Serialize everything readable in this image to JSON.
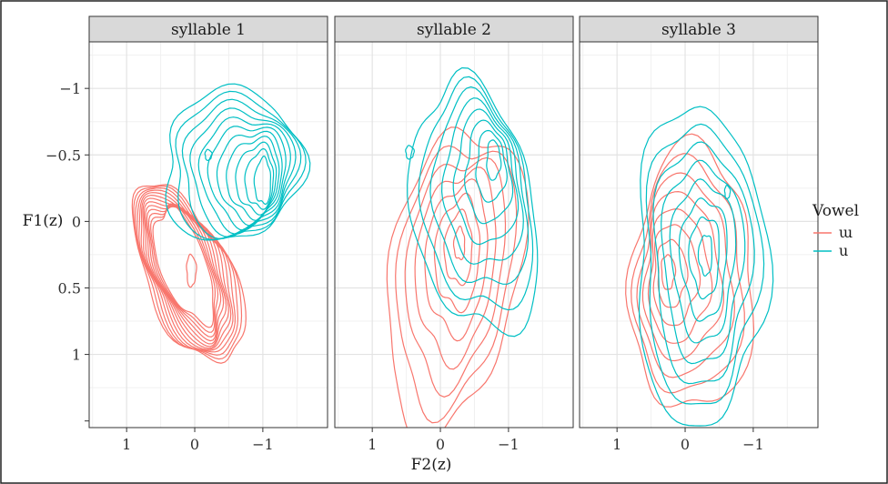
{
  "chart_data": {
    "type": "contour",
    "xlabel": "F2(z)",
    "ylabel": "F1(z)",
    "x_reversed": true,
    "y_reversed": true,
    "xlim": [
      1.55,
      -1.95
    ],
    "ylim": [
      -1.35,
      1.55
    ],
    "x_ticks": [
      1,
      0,
      -1
    ],
    "x_tick_labels": [
      "1",
      "0",
      "−1"
    ],
    "y_ticks": [
      -1,
      -0.5,
      0,
      0.5,
      1
    ],
    "y_tick_labels": [
      "−1",
      "−0.5",
      "0",
      "0.5",
      "1"
    ],
    "grid": true,
    "legend": {
      "title": "Vowel",
      "placement": "right",
      "entries": [
        {
          "label": "ɯ",
          "color": "#F8766D"
        },
        {
          "label": "u",
          "color": "#00BFC4"
        }
      ]
    },
    "panels": [
      {
        "label": "syllable 1",
        "series": [
          {
            "vowel": "ɯ",
            "color": "#F8766D",
            "levels": 13,
            "contours": [
              {
                "center": [
                  0.1,
                  0.4
                ],
                "rx": 0.62,
                "ry": 0.72,
                "angle": -25
              },
              {
                "center": [
                  0.16,
                  0.33
                ],
                "rx": 0.34,
                "ry": 0.45,
                "angle": -20
              },
              {
                "center": [
                  0.05,
                  0.37
                ],
                "rx": 0.07,
                "ry": 0.12,
                "angle": 0
              }
            ]
          },
          {
            "vowel": "u",
            "color": "#00BFC4",
            "levels": 11,
            "contours": [
              {
                "center": [
                  -0.55,
                  -0.42
                ],
                "rx": 1.0,
                "ry": 0.58,
                "angle": 15
              },
              {
                "center": [
                  -1.0,
                  -0.3
                ],
                "rx": 0.12,
                "ry": 0.17,
                "angle": 0
              },
              {
                "center": [
                  -0.2,
                  -0.5
                ],
                "rx": 0.05,
                "ry": 0.04,
                "angle": 0
              }
            ]
          }
        ]
      },
      {
        "label": "syllable 2",
        "series": [
          {
            "vowel": "ɯ",
            "color": "#F8766D",
            "levels": 8,
            "contours": [
              {
                "center": [
                  -0.2,
                  0.42
                ],
                "rx": 0.95,
                "ry": 1.15,
                "angle": 10
              },
              {
                "center": [
                  -0.28,
                  0.17
                ],
                "rx": 0.08,
                "ry": 0.12,
                "angle": 0
              }
            ]
          },
          {
            "vowel": "u",
            "color": "#00BFC4",
            "levels": 8,
            "contours": [
              {
                "center": [
                  -0.5,
                  -0.1
                ],
                "rx": 0.9,
                "ry": 0.95,
                "angle": -10
              },
              {
                "center": [
                  -0.78,
                  -0.46
                ],
                "rx": 0.1,
                "ry": 0.15,
                "angle": 0
              },
              {
                "center": [
                  0.45,
                  -0.52
                ],
                "rx": 0.06,
                "ry": 0.05,
                "angle": 0
              }
            ]
          }
        ]
      },
      {
        "label": "syllable 3",
        "series": [
          {
            "vowel": "ɯ",
            "color": "#F8766D",
            "levels": 8,
            "contours": [
              {
                "center": [
                  -0.1,
                  0.45
                ],
                "rx": 0.9,
                "ry": 1.0,
                "angle": 0
              },
              {
                "center": [
                  0.25,
                  0.38
                ],
                "rx": 0.1,
                "ry": 0.13,
                "angle": 0
              }
            ]
          },
          {
            "vowel": "u",
            "color": "#00BFC4",
            "levels": 8,
            "contours": [
              {
                "center": [
                  -0.22,
                  0.33
                ],
                "rx": 0.95,
                "ry": 1.2,
                "angle": 0
              },
              {
                "center": [
                  -0.3,
                  0.25
                ],
                "rx": 0.1,
                "ry": 0.15,
                "angle": 0
              },
              {
                "center": [
                  -0.62,
                  -0.22
                ],
                "rx": 0.04,
                "ry": 0.05,
                "angle": 0
              }
            ]
          }
        ]
      }
    ]
  }
}
